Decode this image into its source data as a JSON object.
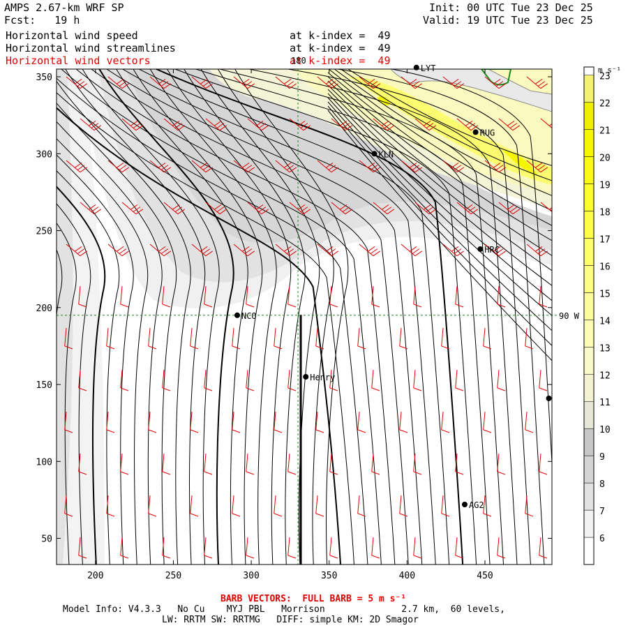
{
  "header": {
    "model_title": "AMPS 2.67-km WRF SP",
    "forecast": "Fcst:   19 h",
    "init": "Init: 00 UTC Tue 23 Dec 25",
    "valid": "Valid: 19 UTC Tue 23 Dec 25",
    "fields": [
      {
        "name": "Horizontal wind speed",
        "level": "at k-index =  49",
        "color": "#000000"
      },
      {
        "name": "Horizontal wind streamlines",
        "level": "at k-index =  49",
        "color": "#000000"
      },
      {
        "name": "Horizontal wind vectors",
        "level": "at k-index =  49",
        "color": "#e00000"
      }
    ]
  },
  "map": {
    "x_ticks": [
      "200",
      "250",
      "300",
      "350",
      "400",
      "450"
    ],
    "y_ticks": [
      "350",
      "300",
      "250",
      "200",
      "150",
      "100",
      "50"
    ],
    "x_range": [
      175,
      493
    ],
    "y_range": [
      33,
      355
    ],
    "crosshair": {
      "x": 330,
      "y": 195,
      "x_label": "180",
      "y_label": "90 W"
    },
    "stations": [
      {
        "name": "LYT",
        "x": 406,
        "y": 356
      },
      {
        "name": "RUG",
        "x": 444,
        "y": 314
      },
      {
        "name": "KLN",
        "x": 379,
        "y": 300
      },
      {
        "name": "HRC",
        "x": 447,
        "y": 238
      },
      {
        "name": "NCO",
        "x": 291,
        "y": 195
      },
      {
        "name": "Henry",
        "x": 335,
        "y": 155
      },
      {
        "name": "AG2",
        "x": 437,
        "y": 72
      },
      {
        "name": "",
        "x": 491,
        "y": 141
      }
    ]
  },
  "colorbar": {
    "unit": "m s⁻¹",
    "levels": [
      "6",
      "7",
      "8",
      "9",
      "10",
      "11",
      "12",
      "13",
      "14",
      "15",
      "16",
      "17",
      "18",
      "19",
      "20",
      "21",
      "22",
      "23"
    ],
    "colors": [
      "#ffffff",
      "#f2f2f2",
      "#e2e2e2",
      "#d4d4d4",
      "#c6c6c6",
      "#e6e6d6",
      "#f3f3d2",
      "#fafac8",
      "#fbfbb4",
      "#fcfc9c",
      "#fdfd84",
      "#fefe6a",
      "#fdfd48",
      "#fcfc2c",
      "#fafa14",
      "#f6f600",
      "#efef00",
      "#f4f070"
    ]
  },
  "footer": {
    "barb_note": "BARB VECTORS:  FULL BARB = 5 m s⁻¹",
    "model_info_1": "Model Info: V4.3.3   No Cu    MYJ PBL   Morrison              2.7 km,  60 levels,",
    "model_info_2": "LW: RRTM SW: RRTMG   DIFF: simple KM: 2D Smagor"
  }
}
